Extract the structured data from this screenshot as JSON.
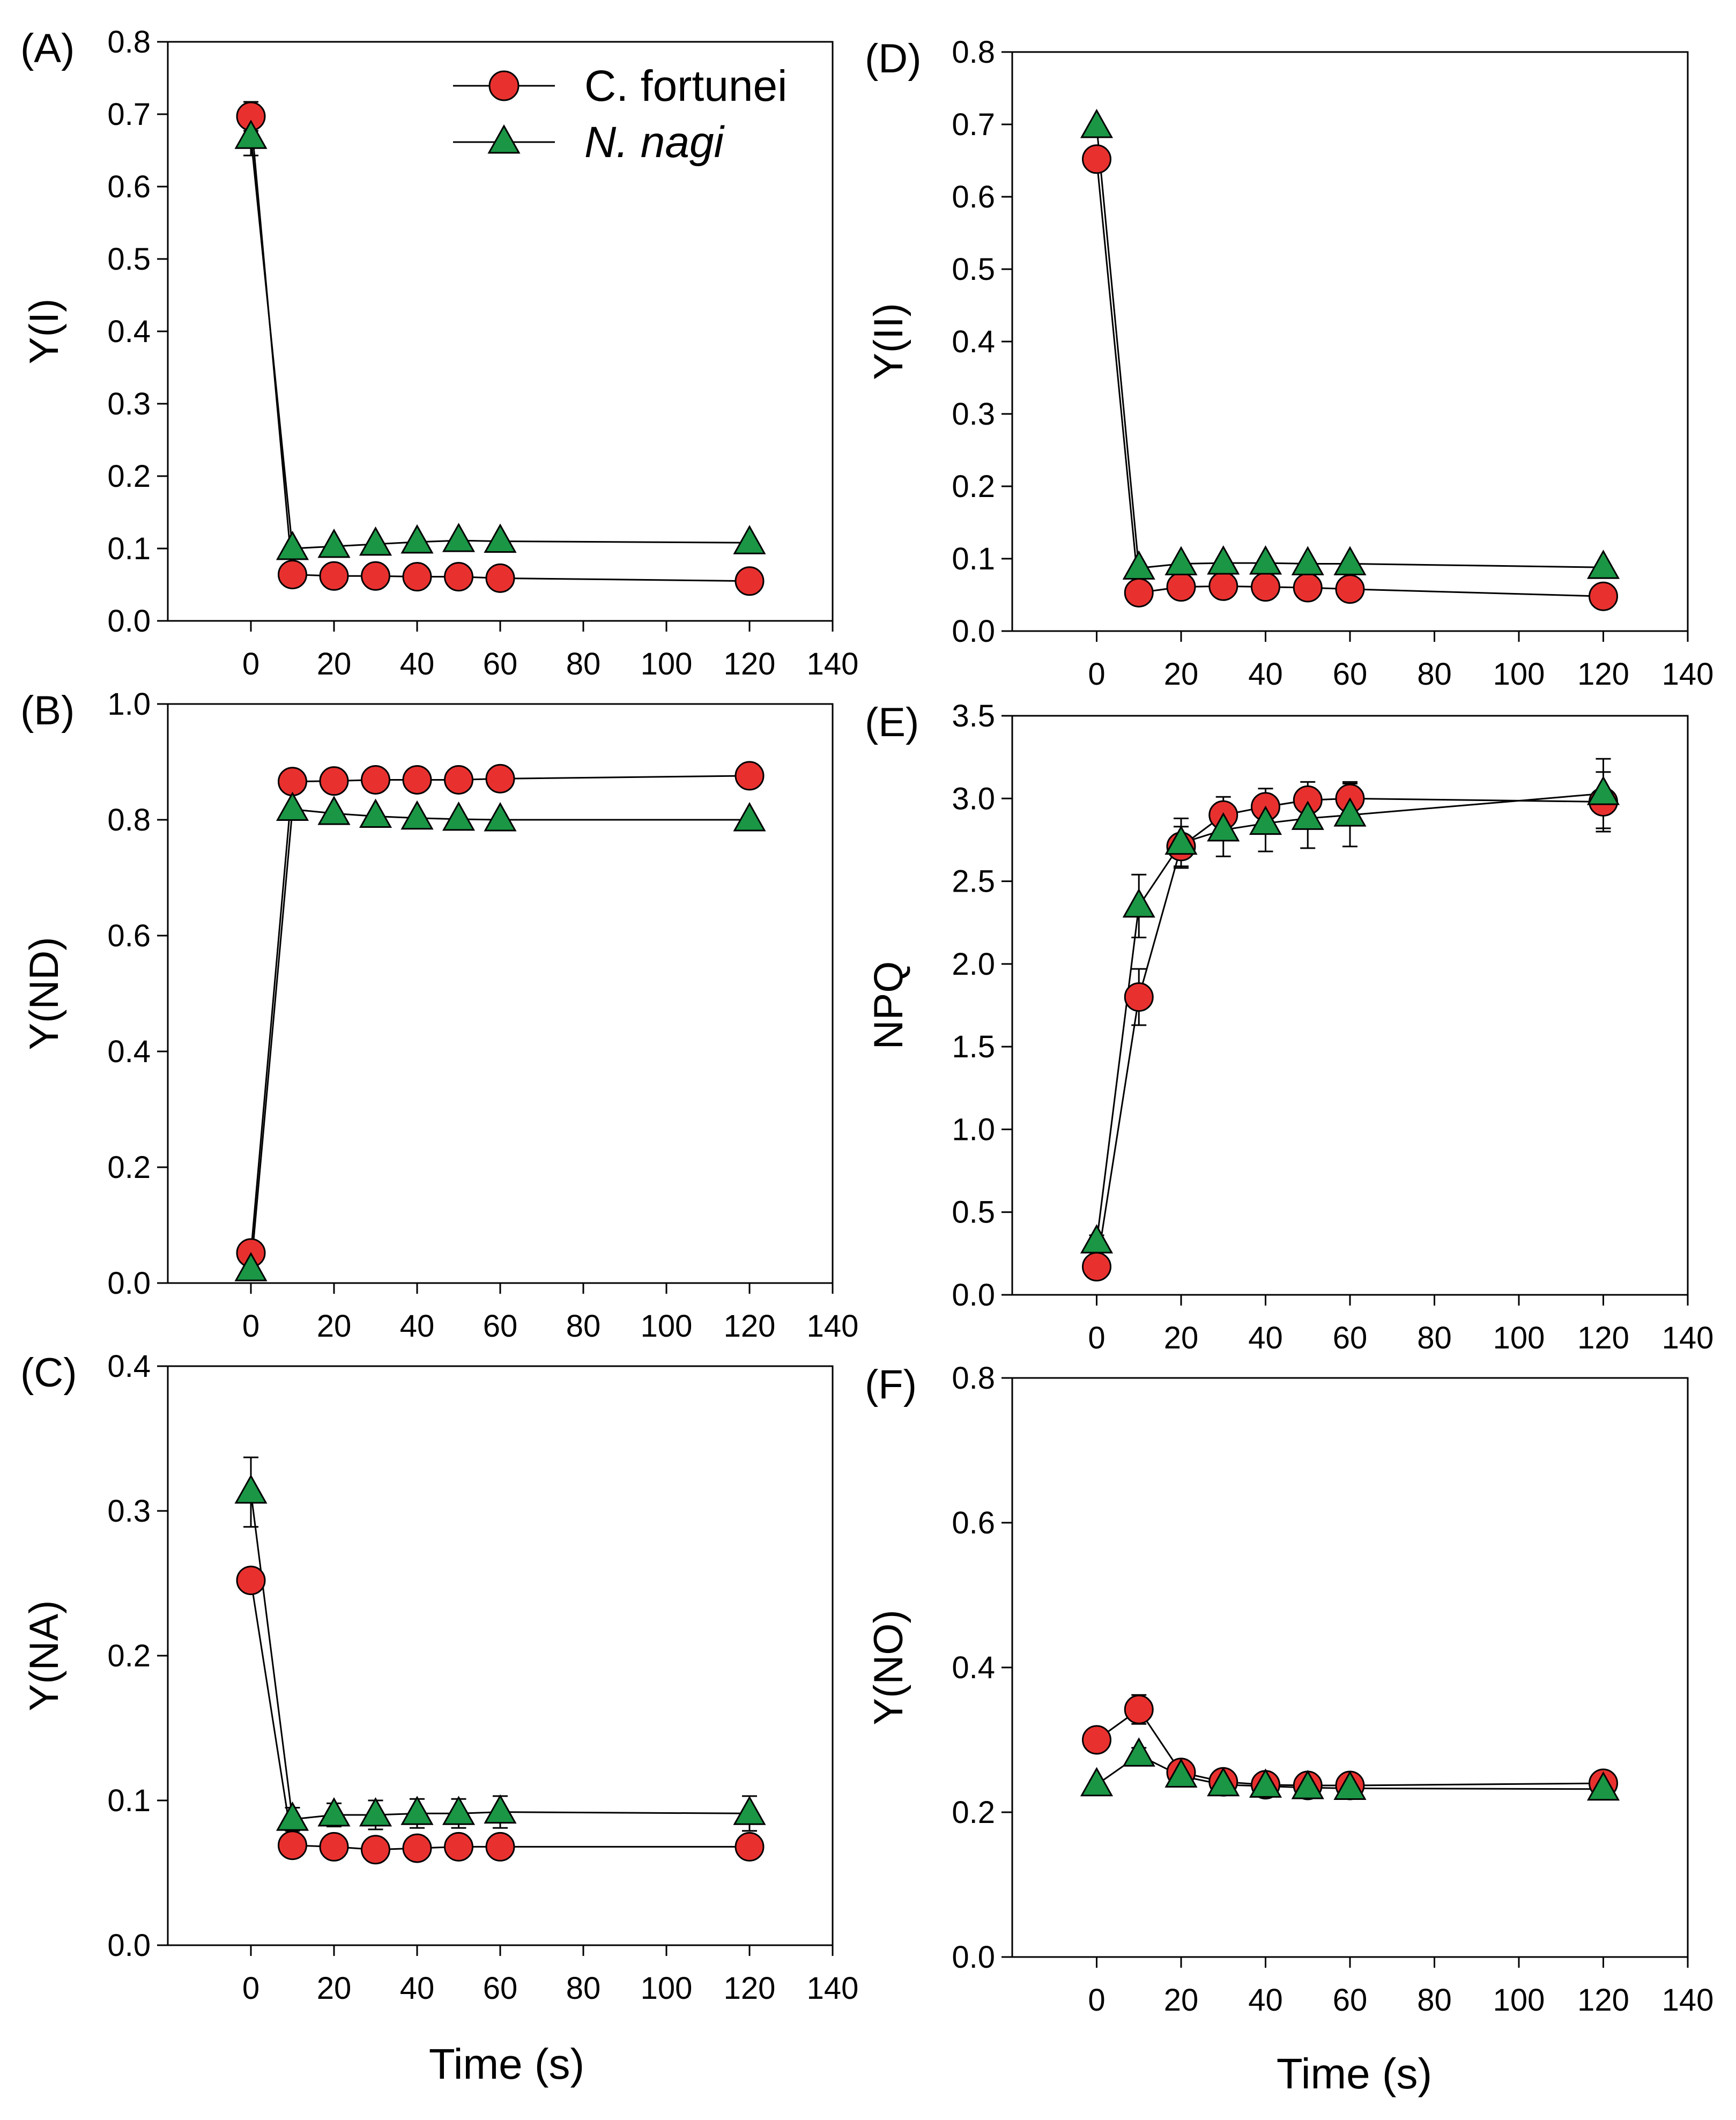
{
  "figure": {
    "series_names": [
      "C. fortunei",
      "N. nagi"
    ],
    "series_colors": {
      "C. fortunei": "#e8312f",
      "N. nagi": "#1a9645"
    },
    "line_color": "#000000"
  },
  "legend": {
    "items": [
      {
        "label": "C. fortunei",
        "marker": "circle",
        "color": "#e8312f",
        "italic": false
      },
      {
        "label": "N. nagi",
        "marker": "triangle",
        "color": "#1a9645",
        "italic": true
      }
    ]
  },
  "x_titles": {
    "left": "Time (s)",
    "right": "Time (s)"
  },
  "chart_data": [
    {
      "type": "line",
      "panel": "(A)",
      "ylabel": "Y(I)",
      "xlabel": "",
      "xlim": [
        -20,
        140
      ],
      "ylim": [
        0,
        0.8
      ],
      "xticks": [
        0,
        20,
        40,
        60,
        80,
        100,
        120,
        140
      ],
      "yticks": [
        "0.0",
        "0.1",
        "0.2",
        "0.3",
        "0.4",
        "0.5",
        "0.6",
        "0.7",
        "0.8"
      ],
      "x": [
        0,
        10,
        20,
        30,
        40,
        50,
        60,
        120
      ],
      "series": [
        {
          "name": "C. fortunei",
          "values": [
            0.697,
            0.064,
            0.062,
            0.062,
            0.061,
            0.061,
            0.059,
            0.055
          ],
          "errors": [
            0.02,
            0.005,
            0.005,
            0.005,
            0.005,
            0.005,
            0.005,
            0.005
          ]
        },
        {
          "name": "N. nagi",
          "values": [
            0.668,
            0.1,
            0.103,
            0.106,
            0.109,
            0.111,
            0.11,
            0.108
          ],
          "errors": [
            0.025,
            0.005,
            0.005,
            0.005,
            0.005,
            0.005,
            0.005,
            0.005
          ]
        }
      ],
      "show_legend": true
    },
    {
      "type": "line",
      "panel": "(B)",
      "ylabel": "Y(ND)",
      "xlabel": "",
      "xlim": [
        -20,
        140
      ],
      "ylim": [
        0,
        1.0
      ],
      "xticks": [
        0,
        20,
        40,
        60,
        80,
        100,
        120,
        140
      ],
      "yticks": [
        "0.0",
        "0.2",
        "0.4",
        "0.6",
        "0.8",
        "1.0"
      ],
      "x": [
        0,
        10,
        20,
        30,
        40,
        50,
        60,
        120
      ],
      "series": [
        {
          "name": "C. fortunei",
          "values": [
            0.052,
            0.866,
            0.867,
            0.869,
            0.869,
            0.869,
            0.871,
            0.876
          ],
          "errors": [
            0.005,
            0.005,
            0.005,
            0.005,
            0.005,
            0.005,
            0.005,
            0.005
          ]
        },
        {
          "name": "N. nagi",
          "values": [
            0.023,
            0.818,
            0.811,
            0.806,
            0.803,
            0.801,
            0.8,
            0.8
          ],
          "errors": [
            0.005,
            0.005,
            0.005,
            0.005,
            0.005,
            0.005,
            0.005,
            0.005
          ]
        }
      ],
      "show_legend": false
    },
    {
      "type": "line",
      "panel": "(C)",
      "ylabel": "Y(NA)",
      "xlabel": "",
      "xlim": [
        -20,
        140
      ],
      "ylim": [
        0,
        0.4
      ],
      "xticks": [
        0,
        20,
        40,
        60,
        80,
        100,
        120,
        140
      ],
      "yticks": [
        "0.0",
        "0.1",
        "0.2",
        "0.3",
        "0.4"
      ],
      "x": [
        0,
        10,
        20,
        30,
        40,
        50,
        60,
        120
      ],
      "series": [
        {
          "name": "C. fortunei",
          "values": [
            0.252,
            0.069,
            0.068,
            0.066,
            0.067,
            0.068,
            0.068,
            0.068
          ],
          "errors": [
            0.008,
            0.004,
            0.004,
            0.004,
            0.004,
            0.004,
            0.004,
            0.004
          ]
        },
        {
          "name": "N. nagi",
          "values": [
            0.313,
            0.087,
            0.09,
            0.09,
            0.091,
            0.091,
            0.092,
            0.091
          ],
          "errors": [
            0.024,
            0.008,
            0.008,
            0.01,
            0.01,
            0.01,
            0.011,
            0.012
          ]
        }
      ],
      "show_legend": false
    },
    {
      "type": "line",
      "panel": "(D)",
      "ylabel": "Y(II)",
      "xlabel": "",
      "xlim": [
        -20,
        140
      ],
      "ylim": [
        0,
        0.8
      ],
      "xticks": [
        0,
        20,
        40,
        60,
        80,
        100,
        120,
        140
      ],
      "yticks": [
        "0.0",
        "0.1",
        "0.2",
        "0.3",
        "0.4",
        "0.5",
        "0.6",
        "0.7",
        "0.8"
      ],
      "x": [
        0,
        10,
        20,
        30,
        40,
        50,
        60,
        120
      ],
      "series": [
        {
          "name": "C. fortunei",
          "values": [
            0.652,
            0.053,
            0.061,
            0.062,
            0.061,
            0.06,
            0.058,
            0.048
          ],
          "errors": [
            0.01,
            0.004,
            0.004,
            0.004,
            0.004,
            0.004,
            0.004,
            0.004
          ]
        },
        {
          "name": "N. nagi",
          "values": [
            0.697,
            0.087,
            0.093,
            0.094,
            0.094,
            0.093,
            0.093,
            0.088
          ],
          "errors": [
            0.005,
            0.005,
            0.005,
            0.005,
            0.005,
            0.005,
            0.005,
            0.005
          ]
        }
      ],
      "show_legend": false
    },
    {
      "type": "line",
      "panel": "(E)",
      "ylabel": "NPQ",
      "xlabel": "",
      "xlim": [
        -20,
        140
      ],
      "ylim": [
        0,
        3.5
      ],
      "xticks": [
        0,
        20,
        40,
        60,
        80,
        100,
        120,
        140
      ],
      "yticks": [
        "0.0",
        "0.5",
        "1.0",
        "1.5",
        "2.0",
        "2.5",
        "3.0",
        "3.5"
      ],
      "x": [
        0,
        10,
        20,
        30,
        40,
        50,
        60,
        120
      ],
      "series": [
        {
          "name": "C. fortunei",
          "values": [
            0.17,
            1.8,
            2.71,
            2.9,
            2.95,
            2.99,
            3.0,
            2.98
          ],
          "errors": [
            0.03,
            0.17,
            0.12,
            0.11,
            0.11,
            0.11,
            0.1,
            0.18
          ]
        },
        {
          "name": "N. nagi",
          "values": [
            0.32,
            2.35,
            2.73,
            2.81,
            2.85,
            2.88,
            2.9,
            3.03
          ],
          "errors": [
            0.04,
            0.19,
            0.15,
            0.16,
            0.17,
            0.18,
            0.19,
            0.21
          ]
        }
      ],
      "show_legend": false
    },
    {
      "type": "line",
      "panel": "(F)",
      "ylabel": "Y(NO)",
      "xlabel": "",
      "xlim": [
        -20,
        140
      ],
      "ylim": [
        0,
        0.8
      ],
      "xticks": [
        0,
        20,
        40,
        60,
        80,
        100,
        120,
        140
      ],
      "yticks": [
        "0.0",
        "0.2",
        "0.4",
        "0.6",
        "0.8"
      ],
      "x": [
        0,
        10,
        20,
        30,
        40,
        50,
        60,
        120
      ],
      "series": [
        {
          "name": "C. fortunei",
          "values": [
            0.3,
            0.342,
            0.255,
            0.242,
            0.238,
            0.237,
            0.237,
            0.24
          ],
          "errors": [
            0.008,
            0.02,
            0.008,
            0.005,
            0.005,
            0.005,
            0.005,
            0.005
          ]
        },
        {
          "name": "N. nagi",
          "values": [
            0.238,
            0.279,
            0.25,
            0.238,
            0.236,
            0.234,
            0.233,
            0.232
          ],
          "errors": [
            0.006,
            0.01,
            0.006,
            0.005,
            0.005,
            0.005,
            0.005,
            0.005
          ]
        }
      ],
      "show_legend": false
    }
  ]
}
